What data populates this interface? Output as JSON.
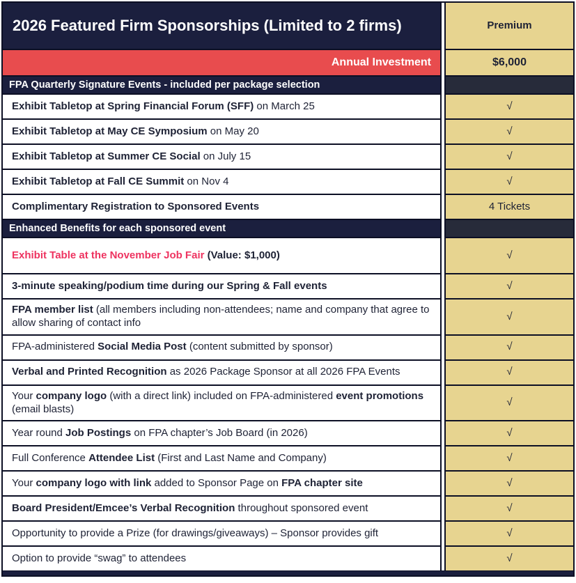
{
  "colors": {
    "navy": "#1b1f3e",
    "red": "#e84c4e",
    "tan": "#e7d490",
    "dark-cell": "#272b3a",
    "pink": "#ee3360",
    "ink": "#1e2235",
    "line": "#0c0f24"
  },
  "header": {
    "title": "2026 Featured Firm Sponsorships (Limited to 2 firms)",
    "column_label": "Premium"
  },
  "check_glyph": "√",
  "rows": [
    {
      "type": "investment",
      "name": "annual-investment",
      "label": "Annual Investment",
      "value": "$6,000"
    },
    {
      "type": "section",
      "name": "section-quarterly-events",
      "label": "FPA Quarterly Signature Events - included per package selection",
      "value": ""
    },
    {
      "type": "benefit",
      "name": "benefit-spring-financial-forum",
      "segments": [
        {
          "text": "Exhibit Tabletop at Spring Financial Forum (SFF)",
          "bold": true
        },
        {
          "text": " on March 25"
        }
      ],
      "value": "√"
    },
    {
      "type": "benefit",
      "name": "benefit-may-ce-symposium",
      "segments": [
        {
          "text": "Exhibit Tabletop at May CE Symposium",
          "bold": true
        },
        {
          "text": " on May 20"
        }
      ],
      "value": "√"
    },
    {
      "type": "benefit",
      "name": "benefit-summer-ce-social",
      "segments": [
        {
          "text": "Exhibit Tabletop at Summer CE Social",
          "bold": true
        },
        {
          "text": " on July 15"
        }
      ],
      "value": "√"
    },
    {
      "type": "benefit",
      "name": "benefit-fall-ce-summit",
      "segments": [
        {
          "text": "Exhibit Tabletop at Fall CE Summit",
          "bold": true
        },
        {
          "text": " on Nov 4"
        }
      ],
      "value": "√"
    },
    {
      "type": "benefit",
      "name": "benefit-complimentary-registration",
      "segments": [
        {
          "text": "Complimentary Registration to Sponsored Events",
          "bold": true
        }
      ],
      "value": "4 Tickets"
    },
    {
      "type": "section",
      "name": "section-enhanced-benefits",
      "label": "Enhanced Benefits for each sponsored event",
      "value": ""
    },
    {
      "type": "benefit",
      "name": "benefit-november-job-fair",
      "segments": [
        {
          "text": "Exhibit Table at the November Job Fair",
          "bold": true,
          "color": "pink"
        },
        {
          "text": " (Value: $1,000)",
          "bold": true
        }
      ],
      "value": "√"
    },
    {
      "type": "benefit",
      "name": "benefit-speaking-time",
      "segments": [
        {
          "text": "3-minute speaking/podium time during our Spring & Fall events",
          "bold": true
        }
      ],
      "value": "√"
    },
    {
      "type": "benefit",
      "name": "benefit-fpa-member-list",
      "segments": [
        {
          "text": "FPA member list",
          "bold": true
        },
        {
          "text": " (all members including non-attendees; name and company that agree to allow sharing of contact info"
        }
      ],
      "value": "√"
    },
    {
      "type": "benefit",
      "name": "benefit-social-media-post",
      "segments": [
        {
          "text": "FPA-administered "
        },
        {
          "text": "Social Media Post",
          "bold": true
        },
        {
          "text": " (content submitted by sponsor)"
        }
      ],
      "value": "√"
    },
    {
      "type": "benefit",
      "name": "benefit-verbal-printed-recognition",
      "segments": [
        {
          "text": "Verbal and Printed Recognition",
          "bold": true
        },
        {
          "text": " as 2026 Package Sponsor at all 2026 FPA Events"
        }
      ],
      "value": "√"
    },
    {
      "type": "benefit",
      "name": "benefit-event-promotions",
      "segments": [
        {
          "text": "Your "
        },
        {
          "text": "company logo",
          "bold": true
        },
        {
          "text": " (with a direct link) included on FPA-administered "
        },
        {
          "text": "event promotions",
          "bold": true
        },
        {
          "text": " (email blasts)"
        }
      ],
      "value": "√"
    },
    {
      "type": "benefit",
      "name": "benefit-job-postings",
      "segments": [
        {
          "text": "Year round "
        },
        {
          "text": "Job Postings",
          "bold": true
        },
        {
          "text": " on FPA chapter’s Job Board (in 2026)"
        }
      ],
      "value": "√"
    },
    {
      "type": "benefit",
      "name": "benefit-attendee-list",
      "segments": [
        {
          "text": "Full Conference "
        },
        {
          "text": "Attendee List",
          "bold": true
        },
        {
          "text": " (First and Last Name and Company)"
        }
      ],
      "value": "√"
    },
    {
      "type": "benefit",
      "name": "benefit-sponsor-page-logo",
      "segments": [
        {
          "text": "Your "
        },
        {
          "text": "company logo with link",
          "bold": true
        },
        {
          "text": " added to Sponsor Page on "
        },
        {
          "text": "FPA chapter site",
          "bold": true
        }
      ],
      "value": "√"
    },
    {
      "type": "benefit",
      "name": "benefit-emcee-recognition",
      "segments": [
        {
          "text": "Board President/Emcee’s Verbal Recognition",
          "bold": true
        },
        {
          "text": " throughout sponsored event"
        }
      ],
      "value": "√"
    },
    {
      "type": "benefit",
      "name": "benefit-prize",
      "segments": [
        {
          "text": "Opportunity to provide a Prize (for drawings/giveaways) – Sponsor provides gift"
        }
      ],
      "value": "√"
    },
    {
      "type": "benefit",
      "name": "benefit-swag",
      "segments": [
        {
          "text": "Option to provide “swag” to attendees"
        }
      ],
      "value": "√"
    }
  ]
}
